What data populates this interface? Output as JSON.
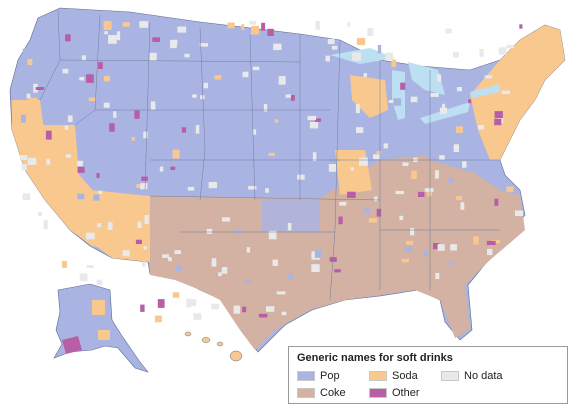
{
  "legend": {
    "title": "Generic names for soft drinks",
    "items": [
      {
        "label": "Pop",
        "color": "#aab4e2"
      },
      {
        "label": "Soda",
        "color": "#f9c88f"
      },
      {
        "label": "No data",
        "color": "#e9e9e9"
      },
      {
        "label": "Coke",
        "color": "#d3b1a3"
      },
      {
        "label": "Other",
        "color": "#b85ea6"
      }
    ]
  },
  "colors": {
    "water": "#bcdff2",
    "border": "#5a6b8e",
    "background": "#ffffff"
  }
}
